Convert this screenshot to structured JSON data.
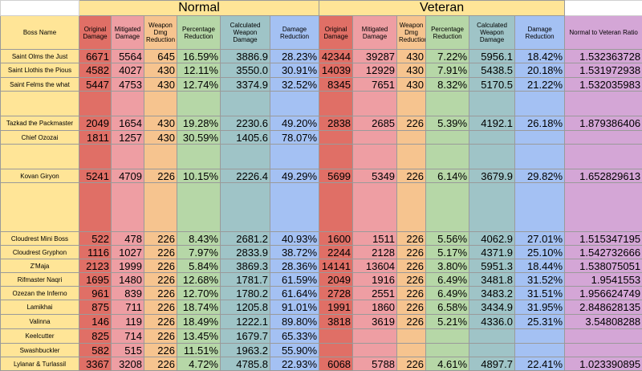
{
  "groups": {
    "normal": "Normal",
    "veteran": "Veteran"
  },
  "headers": {
    "boss_name": "Boss Name",
    "normal": [
      "Original Damage",
      "Mitigated Damage",
      "Weapon Dmg Reduction",
      "Percentage Reduction",
      "Calculated Weapon Damage",
      "Damage Reduction"
    ],
    "veteran": [
      "Original Damage",
      "Mitigated Damage",
      "Weapon Dmg Reduction",
      "Percentage Reduction",
      "Calculated Weapon Damage",
      "Damage Reduction"
    ],
    "ratio": "Normal to Veteran Ratio"
  },
  "rows": [
    {
      "name": "Saint Olms the Just",
      "n": [
        "6671",
        "5564",
        "645",
        "16.59%",
        "3886.9",
        "28.23%"
      ],
      "v": [
        "42344",
        "39287",
        "430",
        "7.22%",
        "5956.1",
        "18.42%"
      ],
      "ratio": "1.532363728"
    },
    {
      "name": "Saint Llothis the Pious",
      "n": [
        "4582",
        "4027",
        "430",
        "12.11%",
        "3550.0",
        "30.91%"
      ],
      "v": [
        "14039",
        "12929",
        "430",
        "7.91%",
        "5438.5",
        "20.18%"
      ],
      "ratio": "1.531972938"
    },
    {
      "name": "Saint Felms the what",
      "n": [
        "5447",
        "4753",
        "430",
        "12.74%",
        "3374.9",
        "32.52%"
      ],
      "v": [
        "8345",
        "7651",
        "430",
        "8.32%",
        "5170.5",
        "21.22%"
      ],
      "ratio": "1.532035983"
    },
    {
      "name": "",
      "n": [
        "",
        "",
        "",
        "",
        "",
        ""
      ],
      "v": [
        "",
        "",
        "",
        "",
        "",
        ""
      ],
      "ratio": ""
    },
    {
      "name": "Tazkad the Packmaster",
      "n": [
        "2049",
        "1654",
        "430",
        "19.28%",
        "2230.6",
        "49.20%"
      ],
      "v": [
        "2838",
        "2685",
        "226",
        "5.39%",
        "4192.1",
        "26.18%"
      ],
      "ratio": "1.879386406"
    },
    {
      "name": "Chief Ozozai",
      "n": [
        "1811",
        "1257",
        "430",
        "30.59%",
        "1405.6",
        "78.07%"
      ],
      "v": [
        "",
        "",
        "",
        "",
        "",
        ""
      ],
      "ratio": ""
    },
    {
      "name": "",
      "n": [
        "",
        "",
        "",
        "",
        "",
        ""
      ],
      "v": [
        "",
        "",
        "",
        "",
        "",
        ""
      ],
      "ratio": ""
    },
    {
      "name": "Kovan Giryon",
      "n": [
        "5241",
        "4709",
        "226",
        "10.15%",
        "2226.4",
        "49.29%"
      ],
      "v": [
        "5699",
        "5349",
        "226",
        "6.14%",
        "3679.9",
        "29.82%"
      ],
      "ratio": "1.652829613"
    },
    {
      "name": "",
      "n": [
        "",
        "",
        "",
        "",
        "",
        ""
      ],
      "v": [
        "",
        "",
        "",
        "",
        "",
        ""
      ],
      "ratio": ""
    },
    {
      "name": "Cloudrest Mini Boss",
      "n": [
        "522",
        "478",
        "226",
        "8.43%",
        "2681.2",
        "40.93%"
      ],
      "v": [
        "1600",
        "1511",
        "226",
        "5.56%",
        "4062.9",
        "27.01%"
      ],
      "ratio": "1.515347195"
    },
    {
      "name": "Cloudrest Gryphon",
      "n": [
        "1116",
        "1027",
        "226",
        "7.97%",
        "2833.9",
        "38.72%"
      ],
      "v": [
        "2244",
        "2128",
        "226",
        "5.17%",
        "4371.9",
        "25.10%"
      ],
      "ratio": "1.542732666"
    },
    {
      "name": "Z'Maja",
      "n": [
        "2123",
        "1999",
        "226",
        "5.84%",
        "3869.3",
        "28.36%"
      ],
      "v": [
        "14141",
        "13604",
        "226",
        "3.80%",
        "5951.3",
        "18.44%"
      ],
      "ratio": "1.538075051"
    },
    {
      "name": "Rifmaster Naqri",
      "n": [
        "1695",
        "1480",
        "226",
        "12.68%",
        "1781.7",
        "61.59%"
      ],
      "v": [
        "2049",
        "1916",
        "226",
        "6.49%",
        "3481.8",
        "31.52%"
      ],
      "ratio": "1.9541553"
    },
    {
      "name": "Ozezan the Inferno",
      "n": [
        "961",
        "839",
        "226",
        "12.70%",
        "1780.2",
        "61.64%"
      ],
      "v": [
        "2728",
        "2551",
        "226",
        "6.49%",
        "3483.2",
        "31.51%"
      ],
      "ratio": "1.956624749"
    },
    {
      "name": "Lamikhai",
      "n": [
        "875",
        "711",
        "226",
        "18.74%",
        "1205.8",
        "91.01%"
      ],
      "v": [
        "1991",
        "1860",
        "226",
        "6.58%",
        "3434.9",
        "31.95%"
      ],
      "ratio": "2.848628135"
    },
    {
      "name": "Valinna",
      "n": [
        "146",
        "119",
        "226",
        "18.49%",
        "1222.1",
        "89.80%"
      ],
      "v": [
        "3818",
        "3619",
        "226",
        "5.21%",
        "4336.0",
        "25.31%"
      ],
      "ratio": "3.54808288"
    },
    {
      "name": "Keelcutter",
      "n": [
        "825",
        "714",
        "226",
        "13.45%",
        "1679.7",
        "65.33%"
      ],
      "v": [
        "",
        "",
        "",
        "",
        "",
        ""
      ],
      "ratio": ""
    },
    {
      "name": "Swashbuckler",
      "n": [
        "582",
        "515",
        "226",
        "11.51%",
        "1963.2",
        "55.90%"
      ],
      "v": [
        "",
        "",
        "",
        "",
        "",
        ""
      ],
      "ratio": ""
    },
    {
      "name": "Lylanar & Turlassil",
      "n": [
        "3367",
        "3208",
        "226",
        "4.72%",
        "4785.8",
        "22.93%"
      ],
      "v": [
        "6068",
        "5788",
        "226",
        "4.61%",
        "4897.7",
        "22.41%"
      ],
      "ratio": "1.023390895"
    }
  ]
}
